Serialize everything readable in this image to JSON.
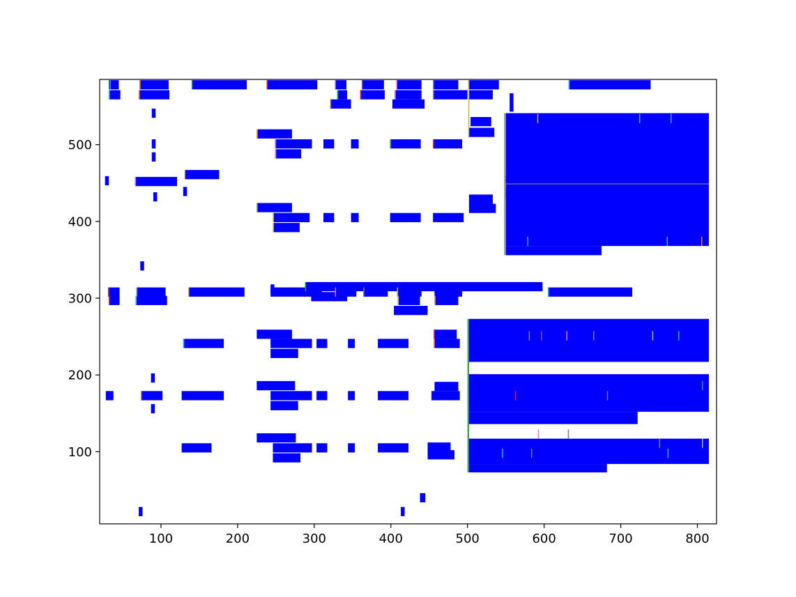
{
  "chart_data": {
    "type": "bar",
    "orientation": "horizontal",
    "title": "",
    "xlabel": "",
    "ylabel": "",
    "xlim": [
      20,
      825
    ],
    "ylim": [
      6,
      585
    ],
    "x_ticks": [
      100,
      200,
      300,
      400,
      500,
      600,
      700,
      800
    ],
    "x_tick_labels": [
      "100",
      "200",
      "300",
      "400",
      "500",
      "600",
      "700",
      "800"
    ],
    "y_ticks": [
      100,
      200,
      300,
      400,
      500
    ],
    "y_tick_labels": [
      "100",
      "200",
      "300",
      "400",
      "500"
    ],
    "grid": false,
    "colors": {
      "bar": "#0000ff",
      "axes": "#000000"
    },
    "bars": [
      [
        32,
        572,
        13,
        12
      ],
      [
        32,
        559,
        15,
        12
      ],
      [
        72,
        572,
        38,
        12
      ],
      [
        71,
        559,
        40,
        12
      ],
      [
        140,
        572,
        72,
        12
      ],
      [
        238,
        572,
        66,
        12
      ],
      [
        327,
        572,
        15,
        12
      ],
      [
        330,
        559,
        13,
        12
      ],
      [
        321,
        547,
        27,
        12
      ],
      [
        362,
        572,
        29,
        12
      ],
      [
        360,
        559,
        32,
        12
      ],
      [
        407,
        572,
        33,
        12
      ],
      [
        405,
        559,
        35,
        12
      ],
      [
        402,
        547,
        42,
        12
      ],
      [
        455,
        572,
        33,
        12
      ],
      [
        455,
        559,
        45,
        12
      ],
      [
        501,
        572,
        40,
        12
      ],
      [
        502,
        559,
        31,
        12
      ],
      [
        555,
        543,
        5,
        24
      ],
      [
        632,
        572,
        107,
        12
      ],
      [
        504,
        524,
        27,
        12
      ],
      [
        502,
        510,
        33,
        12
      ],
      [
        550,
        449,
        265,
        92
      ],
      [
        550,
        430,
        125,
        12
      ],
      [
        225,
        508,
        46,
        12
      ],
      [
        249,
        495,
        48,
        12
      ],
      [
        249,
        482,
        34,
        12
      ],
      [
        312,
        495,
        14,
        12
      ],
      [
        348,
        495,
        10,
        12
      ],
      [
        399,
        495,
        40,
        12
      ],
      [
        455,
        495,
        38,
        12
      ],
      [
        88,
        535,
        5,
        12
      ],
      [
        88,
        495,
        5,
        12
      ],
      [
        88,
        478,
        5,
        12
      ],
      [
        66,
        446,
        55,
        12
      ],
      [
        131,
        455,
        45,
        12
      ],
      [
        27,
        447,
        5,
        12
      ],
      [
        90,
        426,
        5,
        12
      ],
      [
        129,
        433,
        5,
        12
      ],
      [
        225,
        412,
        46,
        12
      ],
      [
        246,
        399,
        48,
        12
      ],
      [
        246,
        386,
        35,
        12
      ],
      [
        312,
        399,
        14,
        12
      ],
      [
        348,
        399,
        10,
        12
      ],
      [
        399,
        399,
        40,
        12
      ],
      [
        455,
        399,
        40,
        12
      ],
      [
        502,
        423,
        31,
        12
      ],
      [
        502,
        411,
        35,
        12
      ],
      [
        550,
        368,
        265,
        92
      ],
      [
        550,
        356,
        125,
        12
      ],
      [
        73,
        336,
        5,
        12
      ],
      [
        31,
        302,
        15,
        12
      ],
      [
        32,
        291,
        14,
        12
      ],
      [
        68,
        302,
        38,
        12
      ],
      [
        67,
        291,
        41,
        12
      ],
      [
        136,
        302,
        73,
        12
      ],
      [
        243,
        306,
        5,
        12
      ],
      [
        243,
        302,
        67,
        12
      ],
      [
        296,
        296,
        47,
        12
      ],
      [
        288,
        309,
        310,
        12
      ],
      [
        327,
        302,
        28,
        12
      ],
      [
        364,
        302,
        32,
        12
      ],
      [
        408,
        302,
        32,
        12
      ],
      [
        409,
        291,
        29,
        12
      ],
      [
        404,
        278,
        44,
        12
      ],
      [
        457,
        302,
        36,
        12
      ],
      [
        457,
        291,
        31,
        12
      ],
      [
        605,
        302,
        110,
        12
      ],
      [
        225,
        247,
        46,
        12
      ],
      [
        243,
        235,
        54,
        12
      ],
      [
        243,
        222,
        36,
        12
      ],
      [
        303,
        235,
        14,
        12
      ],
      [
        344,
        235,
        9,
        12
      ],
      [
        383,
        235,
        40,
        12
      ],
      [
        456,
        247,
        30,
        12
      ],
      [
        456,
        235,
        34,
        12
      ],
      [
        129,
        235,
        53,
        12
      ],
      [
        502,
        217,
        313,
        56
      ],
      [
        502,
        152,
        313,
        49
      ],
      [
        502,
        84,
        313,
        33
      ],
      [
        502,
        136,
        220,
        16
      ],
      [
        502,
        73,
        180,
        11
      ],
      [
        87,
        190,
        5,
        12
      ],
      [
        87,
        150,
        5,
        12
      ],
      [
        28,
        167,
        10,
        12
      ],
      [
        74,
        167,
        28,
        12
      ],
      [
        127,
        167,
        55,
        12
      ],
      [
        225,
        180,
        50,
        12
      ],
      [
        243,
        167,
        54,
        12
      ],
      [
        243,
        154,
        36,
        12
      ],
      [
        303,
        167,
        14,
        12
      ],
      [
        344,
        167,
        9,
        12
      ],
      [
        383,
        167,
        40,
        12
      ],
      [
        457,
        179,
        31,
        12
      ],
      [
        453,
        167,
        37,
        12
      ],
      [
        127,
        99,
        39,
        12
      ],
      [
        225,
        112,
        51,
        12
      ],
      [
        246,
        99,
        51,
        12
      ],
      [
        246,
        86,
        36,
        12
      ],
      [
        303,
        99,
        14,
        12
      ],
      [
        344,
        99,
        9,
        12
      ],
      [
        383,
        99,
        40,
        12
      ],
      [
        448,
        100,
        30,
        12
      ],
      [
        448,
        90,
        35,
        12
      ],
      [
        71,
        16,
        5,
        12
      ],
      [
        413,
        16,
        5,
        12
      ],
      [
        438,
        34,
        7,
        12
      ]
    ],
    "accent_marks": [
      [
        33,
        572,
        1.2,
        12,
        "#17becf"
      ],
      [
        32,
        559,
        1.2,
        12,
        "#17becf"
      ],
      [
        72,
        572,
        1.2,
        12,
        "#ff7f0e"
      ],
      [
        71,
        559,
        1.2,
        12,
        "#ff7f0e"
      ],
      [
        140,
        572,
        1.2,
        12,
        "#2ca02c"
      ],
      [
        238,
        572,
        1.2,
        12,
        "#d62728"
      ],
      [
        327,
        572,
        1.2,
        12,
        "#7f7f7f"
      ],
      [
        330,
        559,
        1.2,
        12,
        "#2ca02c"
      ],
      [
        321,
        547,
        1.2,
        12,
        "#8c564b"
      ],
      [
        362,
        572,
        1.2,
        12,
        "#8c564b"
      ],
      [
        360,
        559,
        1.2,
        12,
        "#d62728"
      ],
      [
        407,
        572,
        1.2,
        12,
        "#e377c2"
      ],
      [
        405,
        559,
        1.2,
        12,
        "#e377c2"
      ],
      [
        455,
        572,
        1.2,
        12,
        "#7f7f7f"
      ],
      [
        455,
        559,
        1.2,
        12,
        "#9467bd"
      ],
      [
        501,
        559,
        1.2,
        25,
        "#bcbd22"
      ],
      [
        501,
        509,
        1.2,
        50,
        "#bcbd22"
      ],
      [
        632,
        572,
        1.2,
        12,
        "#17becf"
      ],
      [
        548,
        356,
        1.6,
        185,
        "#7f7f7f"
      ],
      [
        591,
        528,
        1.2,
        12,
        "#bcbd22"
      ],
      [
        724,
        528,
        1.2,
        12,
        "#17becf"
      ],
      [
        765,
        528,
        1.2,
        12,
        "#17becf"
      ],
      [
        225,
        508,
        1.2,
        12,
        "#ff7f0e"
      ],
      [
        249,
        495,
        1.2,
        12,
        "#9467bd"
      ],
      [
        249,
        482,
        1.2,
        12,
        "#e377c2"
      ],
      [
        399,
        495,
        1.2,
        12,
        "#2ca02c"
      ],
      [
        455,
        495,
        1.2,
        12,
        "#d62728"
      ],
      [
        66,
        446,
        1.2,
        12,
        "#e377c2"
      ],
      [
        131,
        455,
        1.2,
        12,
        "#8c564b"
      ],
      [
        225,
        412,
        1.2,
        12,
        "#7f7f7f"
      ],
      [
        246,
        399,
        1.2,
        12,
        "#bcbd22"
      ],
      [
        246,
        386,
        1.2,
        12,
        "#bcbd22"
      ],
      [
        578,
        368,
        1.2,
        12,
        "#17becf"
      ],
      [
        760,
        368,
        1.2,
        12,
        "#17becf"
      ],
      [
        805,
        368,
        1.2,
        12,
        "#ff7f0e"
      ],
      [
        31,
        302,
        1.2,
        12,
        "#d62728"
      ],
      [
        32,
        291,
        1.2,
        12,
        "#d62728"
      ],
      [
        68,
        302,
        1.2,
        12,
        "#7f7f7f"
      ],
      [
        67,
        291,
        1.2,
        12,
        "#17becf"
      ],
      [
        136,
        302,
        1.2,
        12,
        "#8c564b"
      ],
      [
        288,
        309,
        1.2,
        12,
        "#2ca02c"
      ],
      [
        327,
        302,
        1.2,
        12,
        "#e377c2"
      ],
      [
        364,
        302,
        1.2,
        12,
        "#7f7f7f"
      ],
      [
        408,
        302,
        1.2,
        12,
        "#bcbd22"
      ],
      [
        409,
        291,
        1.2,
        12,
        "#bcbd22"
      ],
      [
        457,
        291,
        1.2,
        12,
        "#ff7f0e"
      ],
      [
        605,
        302,
        1.2,
        12,
        "#17becf"
      ],
      [
        129,
        235,
        1.2,
        12,
        "#17becf"
      ],
      [
        456,
        247,
        1.2,
        12,
        "#d62728"
      ],
      [
        456,
        235,
        1.2,
        12,
        "#ff7f0e"
      ],
      [
        74,
        167,
        1.2,
        12,
        "#8c564b"
      ],
      [
        500,
        73,
        2,
        200,
        "#2ca02c"
      ],
      [
        580,
        245,
        1.2,
        12,
        "#7f7f7f"
      ],
      [
        596,
        245,
        1.2,
        12,
        "#8c564b"
      ],
      [
        629,
        245,
        1.2,
        12,
        "#e377c2"
      ],
      [
        664,
        245,
        1.2,
        12,
        "#7f7f7f"
      ],
      [
        741,
        245,
        1.2,
        12,
        "#bcbd22"
      ],
      [
        775,
        245,
        1.2,
        12,
        "#17becf"
      ],
      [
        562,
        167,
        1.2,
        12,
        "#d62728"
      ],
      [
        682,
        167,
        1.2,
        12,
        "#9467bd"
      ],
      [
        806,
        180,
        1.2,
        12,
        "#2ca02c"
      ],
      [
        592,
        117,
        1.2,
        12,
        "#e377c2"
      ],
      [
        631,
        117,
        1.2,
        12,
        "#7f7f7f"
      ],
      [
        750,
        105,
        1.2,
        12,
        "#7f7f7f"
      ],
      [
        806,
        105,
        1.2,
        12,
        "#bcbd22"
      ],
      [
        545,
        92,
        1.2,
        12,
        "#17becf"
      ],
      [
        583,
        92,
        1.2,
        12,
        "#7f7f7f"
      ],
      [
        761,
        92,
        1.2,
        12,
        "#17becf"
      ]
    ],
    "separators": [
      [
        550,
        449,
        265,
        "#7f7f7f"
      ]
    ]
  }
}
